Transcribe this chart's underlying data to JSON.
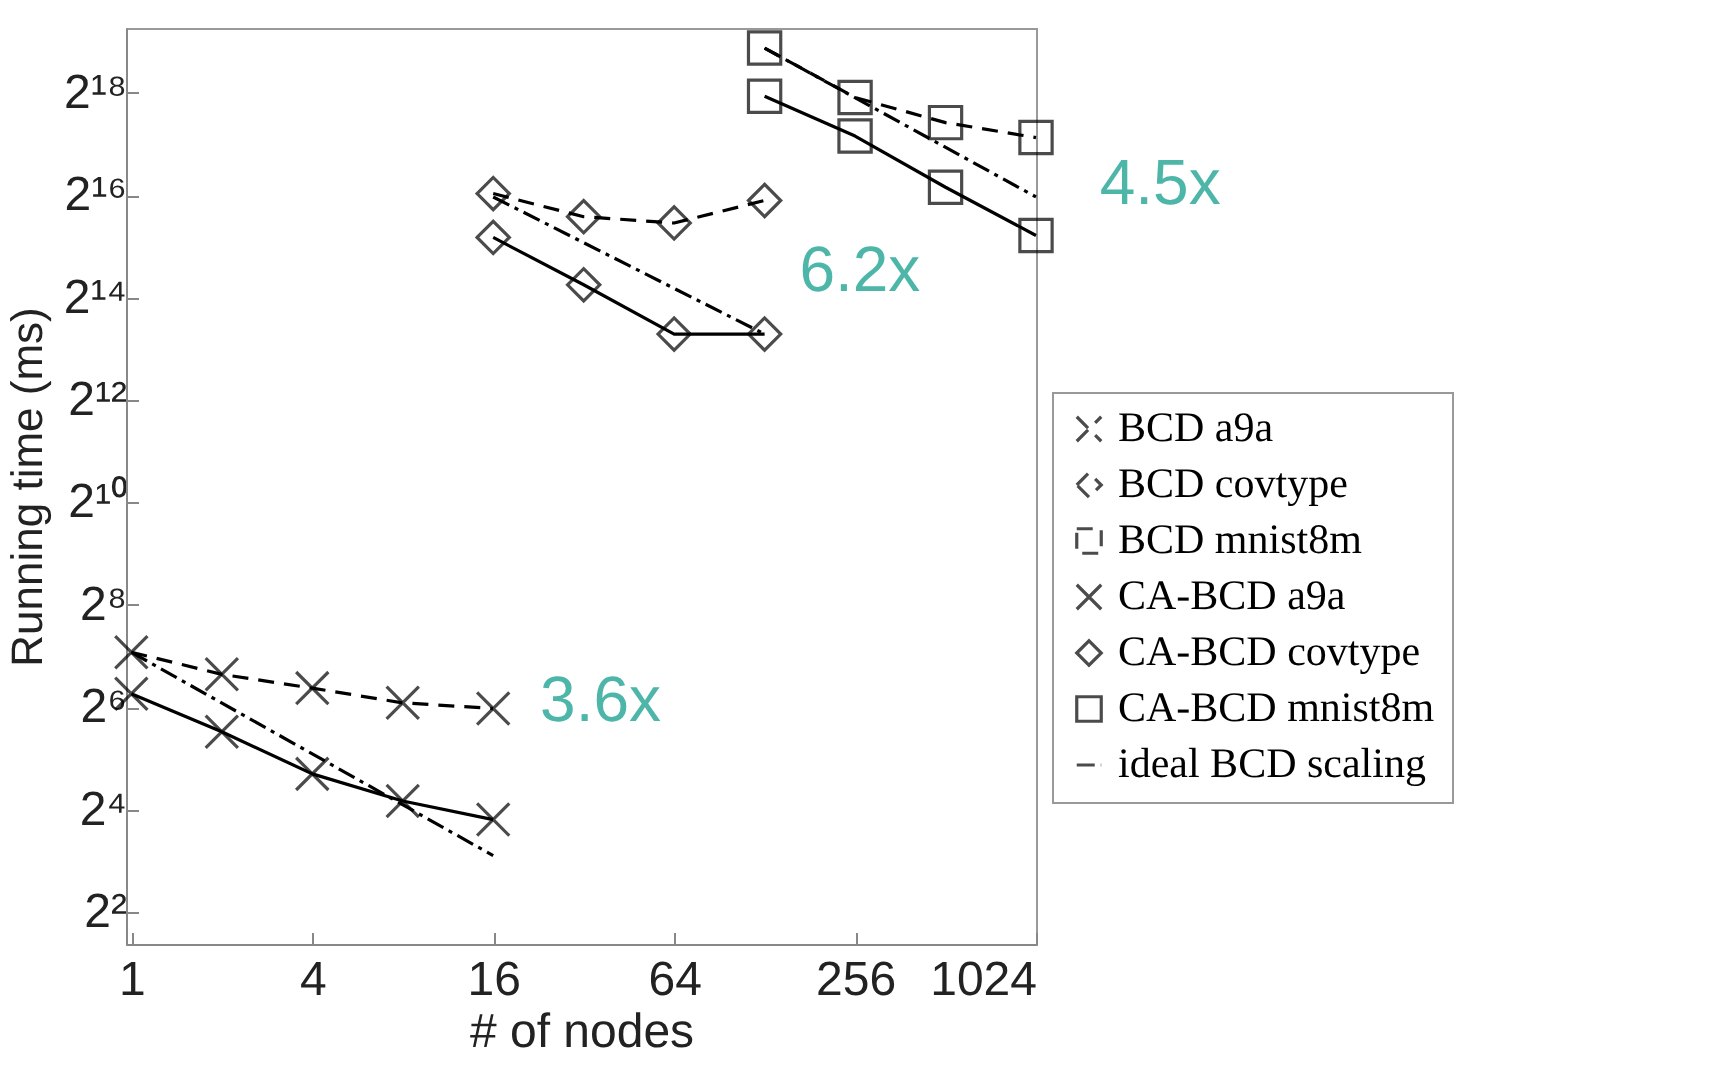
{
  "chart_data": {
    "type": "line",
    "xlabel": "# of nodes",
    "ylabel": "Running time (ms)",
    "log": "xy",
    "grid": false,
    "legend": "right",
    "xlim": [
      0.96,
      1024
    ],
    "xticks": [
      1,
      4,
      16,
      64,
      256,
      1024
    ],
    "ylim": [
      2.6,
      630000
    ],
    "yticks": [
      {
        "value": 4,
        "label": "2²"
      },
      {
        "value": 16,
        "label": "2⁴"
      },
      {
        "value": 64,
        "label": "2⁶"
      },
      {
        "value": 256,
        "label": "2⁸"
      },
      {
        "value": 1024,
        "label": "2¹⁰"
      },
      {
        "value": 4096,
        "label": "2¹²"
      },
      {
        "value": 16384,
        "label": "2¹⁴"
      },
      {
        "value": 65536,
        "label": "2¹⁶"
      },
      {
        "value": 262144,
        "label": "2¹⁸"
      }
    ],
    "series": [
      {
        "name": "BCD a9a",
        "color": "#000000",
        "marker": "cross",
        "line_style": "dashed",
        "x": [
          1,
          2,
          4,
          8,
          16
        ],
        "values": [
          135,
          100,
          83,
          68,
          63
        ]
      },
      {
        "name": "BCD covtype",
        "color": "#000000",
        "marker": "diamond",
        "line_style": "dashed",
        "x": [
          16,
          32,
          64,
          128
        ],
        "values": [
          67000,
          49000,
          45000,
          61000
        ]
      },
      {
        "name": "BCD mnist8m",
        "color": "#000000",
        "marker": "square",
        "line_style": "dashed",
        "x": [
          128,
          256,
          512,
          1024
        ],
        "values": [
          480000,
          246000,
          175000,
          143000
        ]
      },
      {
        "name": "CA-BCD a9a",
        "color": "#000000",
        "marker": "cross",
        "line_style": "solid",
        "x": [
          1,
          2,
          4,
          8,
          16
        ],
        "values": [
          77,
          46,
          26,
          18,
          14
        ]
      },
      {
        "name": "CA-BCD covtype",
        "color": "#000000",
        "marker": "diamond",
        "line_style": "solid",
        "x": [
          16,
          32,
          64,
          128
        ],
        "values": [
          37000,
          19500,
          10000,
          10000
        ]
      },
      {
        "name": "CA-BCD mnist8m",
        "color": "#000000",
        "marker": "square",
        "line_style": "solid",
        "x": [
          128,
          256,
          512,
          1024
        ],
        "values": [
          250000,
          146000,
          73000,
          38000
        ]
      },
      {
        "name": "ideal BCD scaling",
        "color": "#000000",
        "marker": "none",
        "line_style": "dashdot",
        "x": [
          1,
          16
        ],
        "values": [
          135,
          8.6
        ]
      },
      {
        "color": "#000000",
        "marker": "none",
        "line_style": "dashdot",
        "x": [
          16,
          128
        ],
        "values": [
          64000,
          10000
        ]
      },
      {
        "color": "#000000",
        "marker": "none",
        "line_style": "dashdot",
        "x": [
          128,
          1024
        ],
        "values": [
          480000,
          64000
        ]
      }
    ],
    "annotations": [
      "3.6x",
      "6.2x",
      "4.5x"
    ]
  }
}
